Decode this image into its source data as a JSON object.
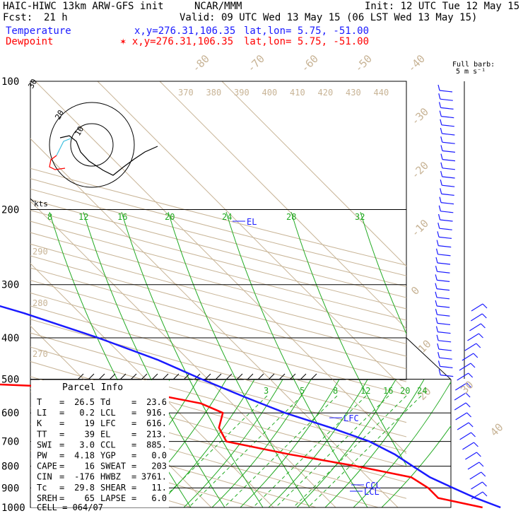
{
  "header": {
    "title": "HAIC-HIWC 13km ARW-GFS init",
    "org": "NCAR/MMM",
    "init": "Init: 12 UTC Tue 12 May 15",
    "fcst_label": "Fcst:",
    "fcst_value": "21 h",
    "valid": "Valid: 09 UTC Wed 13 May 15 (06 LST Wed 13 May 15)",
    "temp_label": "Temperature",
    "temp_xy": "x,y=276.31,106.35",
    "temp_latlon": "lat,lon=  5.75, -51.00",
    "dew_label": "Dewpoint",
    "dew_xy": "✶ x,y=276.31,106.35",
    "dew_latlon": "lat,lon=  5.75, -51.00",
    "barb_title": "Full barb:",
    "barb_unit": "5 m s⁻¹"
  },
  "colors": {
    "temperature": "#1a1aff",
    "dewpoint": "#ff0000",
    "isotherm": "#c8b496",
    "mixing_ratio": "#22aa22",
    "hodo_cyan": "#40c0e0"
  },
  "chart_data": {
    "type": "line",
    "y_axis": "pressure (hPa)",
    "pressure_labels": [
      "100",
      "200",
      "300",
      "400",
      "500",
      "600",
      "700",
      "800",
      "900",
      "1000"
    ],
    "pressures": [
      100,
      200,
      300,
      400,
      500,
      600,
      700,
      800,
      900,
      1000
    ],
    "isotherm_labels": [
      "-80",
      "-70",
      "-60",
      "-50",
      "-40",
      "-30",
      "-20",
      "-10",
      "0",
      "10",
      "20",
      "30",
      "40"
    ],
    "theta_labels": [
      "370",
      "380",
      "390",
      "400",
      "410",
      "420",
      "430",
      "440"
    ],
    "theta_side_labels": [
      "290",
      "280",
      "270"
    ],
    "mixing_labels_upper": [
      "8",
      "12",
      "16",
      "20",
      "24",
      "28",
      "32"
    ],
    "mixing_labels_lower": [
      "3",
      "5",
      "8",
      "12",
      "16",
      "20",
      "24"
    ],
    "series": [
      {
        "name": "Temperature",
        "points": [
          [
            100,
            -71
          ],
          [
            120,
            -73
          ],
          [
            150,
            -69
          ],
          [
            200,
            -53
          ],
          [
            250,
            -40
          ],
          [
            300,
            -30
          ],
          [
            350,
            -19
          ],
          [
            400,
            -11
          ],
          [
            450,
            -5
          ],
          [
            500,
            -1
          ],
          [
            550,
            3
          ],
          [
            600,
            7
          ],
          [
            650,
            12
          ],
          [
            700,
            16
          ],
          [
            750,
            18
          ],
          [
            800,
            19
          ],
          [
            850,
            20
          ],
          [
            900,
            22
          ],
          [
            950,
            24
          ],
          [
            1000,
            26.5
          ]
        ]
      },
      {
        "name": "Dewpoint",
        "points": [
          [
            100,
            -86
          ],
          [
            130,
            -94
          ],
          [
            150,
            -94
          ],
          [
            200,
            -77
          ],
          [
            220,
            -73
          ],
          [
            250,
            -60
          ],
          [
            280,
            -50
          ],
          [
            300,
            -50
          ],
          [
            330,
            -52
          ],
          [
            360,
            -60
          ],
          [
            380,
            -64
          ],
          [
            420,
            -48
          ],
          [
            450,
            -62
          ],
          [
            480,
            -64
          ],
          [
            500,
            -54
          ],
          [
            530,
            -14
          ],
          [
            570,
            -5
          ],
          [
            600,
            -3
          ],
          [
            650,
            -6
          ],
          [
            700,
            -7
          ],
          [
            750,
            1
          ],
          [
            800,
            10
          ],
          [
            850,
            17
          ],
          [
            900,
            18
          ],
          [
            950,
            18
          ],
          [
            1000,
            23.6
          ]
        ]
      }
    ],
    "levels": [
      {
        "label": "EL",
        "pressure": 213
      },
      {
        "label": "LFC",
        "pressure": 616
      },
      {
        "label": "CCL",
        "pressure": 885
      },
      {
        "label": "LCL",
        "pressure": 916
      }
    ],
    "hodograph": {
      "unit_label": "kts",
      "ring_labels": [
        "10",
        "20",
        "30"
      ]
    },
    "parcel_info": {
      "title": "Parcel Info",
      "rows": [
        {
          "k1": "T",
          "v1": "26.5",
          "k2": "Td",
          "v2": "23.6"
        },
        {
          "k1": "LI",
          "v1": "0.2",
          "k2": "LCL",
          "v2": "916."
        },
        {
          "k1": "K",
          "v1": "19",
          "k2": "LFC",
          "v2": "616."
        },
        {
          "k1": "TT",
          "v1": "39",
          "k2": "EL",
          "v2": "213."
        },
        {
          "k1": "SWI",
          "v1": "3.0",
          "k2": "CCL",
          "v2": "885."
        },
        {
          "k1": "PW",
          "v1": "4.18",
          "k2": "YGP",
          "v2": "0.0"
        },
        {
          "k1": "CAPE",
          "v1": "16",
          "k2": "SWEAT",
          "v2": "203"
        },
        {
          "k1": "CIN",
          "v1": "-176",
          "k2": "HWBZ",
          "v2": "3761."
        },
        {
          "k1": "Tc",
          "v1": "29.8",
          "k2": "SHEAR",
          "v2": "11."
        },
        {
          "k1": "SREH",
          "v1": "65",
          "k2": "LAPSE",
          "v2": "6.0"
        }
      ],
      "cell": "CELL = 064/07"
    }
  }
}
